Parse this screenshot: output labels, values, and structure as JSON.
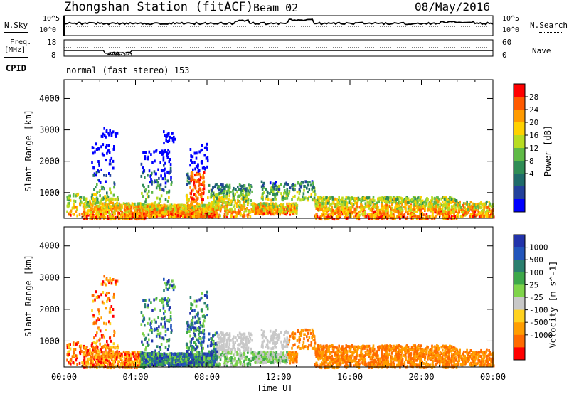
{
  "header": {
    "title": "Zhongshan Station (fitACF)",
    "beam": "Beam 02",
    "date": "08/May/2016"
  },
  "top_panels": {
    "nsky_label": "N.Sky",
    "nsearch_label": "N.Search",
    "nsky_ticks": [
      "10^5",
      "10^0"
    ],
    "nsearch_ticks": [
      "10^5",
      "10^0"
    ],
    "freq_label": "Freq.",
    "freq_unit": "[MHz]",
    "freq_ticks": [
      "18",
      "8"
    ],
    "nave_label": "Nave",
    "nave_ticks": [
      "60",
      "0"
    ],
    "cpid_label": "CPID",
    "cpid_value": "normal (fast stereo) 153"
  },
  "chart_data": [
    {
      "type": "heatmap",
      "name": "power",
      "ylabel": "Slant Range [km]",
      "xlabel": "",
      "yticks": [
        "4000",
        "3000",
        "2000",
        "1000"
      ],
      "ylim": [
        180,
        4600
      ],
      "colorbar": {
        "label": "Power [dB]",
        "ticks": [
          "28",
          "24",
          "20",
          "16",
          "12",
          "8",
          "4"
        ],
        "colors": [
          "#ff0000",
          "#ff5a00",
          "#ff9a00",
          "#ffd100",
          "#b8dc22",
          "#5fba46",
          "#2f8d55",
          "#1f6b6a",
          "#23419c",
          "#0000ff"
        ]
      },
      "colorbar_range": [
        0,
        32
      ]
    },
    {
      "type": "heatmap",
      "name": "velocity",
      "ylabel": "Slant Range [km]",
      "xlabel": "Time UT",
      "yticks": [
        "4000",
        "3000",
        "2000",
        "1000"
      ],
      "ylim": [
        180,
        4600
      ],
      "xticks": [
        "00:00",
        "04:00",
        "08:00",
        "12:00",
        "16:00",
        "20:00",
        "00:00"
      ],
      "colorbar": {
        "label": "Velocity [m s^-1]",
        "ticks": [
          "1000",
          "500",
          "100",
          "25",
          "-25",
          "-100",
          "-500",
          "-1000"
        ],
        "colors": [
          "#2233aa",
          "#2255bb",
          "#2a7f6f",
          "#3da84a",
          "#7fd44a",
          "#c8c8c8",
          "#ffd21f",
          "#ff9d00",
          "#ff6a00",
          "#ff0000"
        ]
      }
    }
  ]
}
